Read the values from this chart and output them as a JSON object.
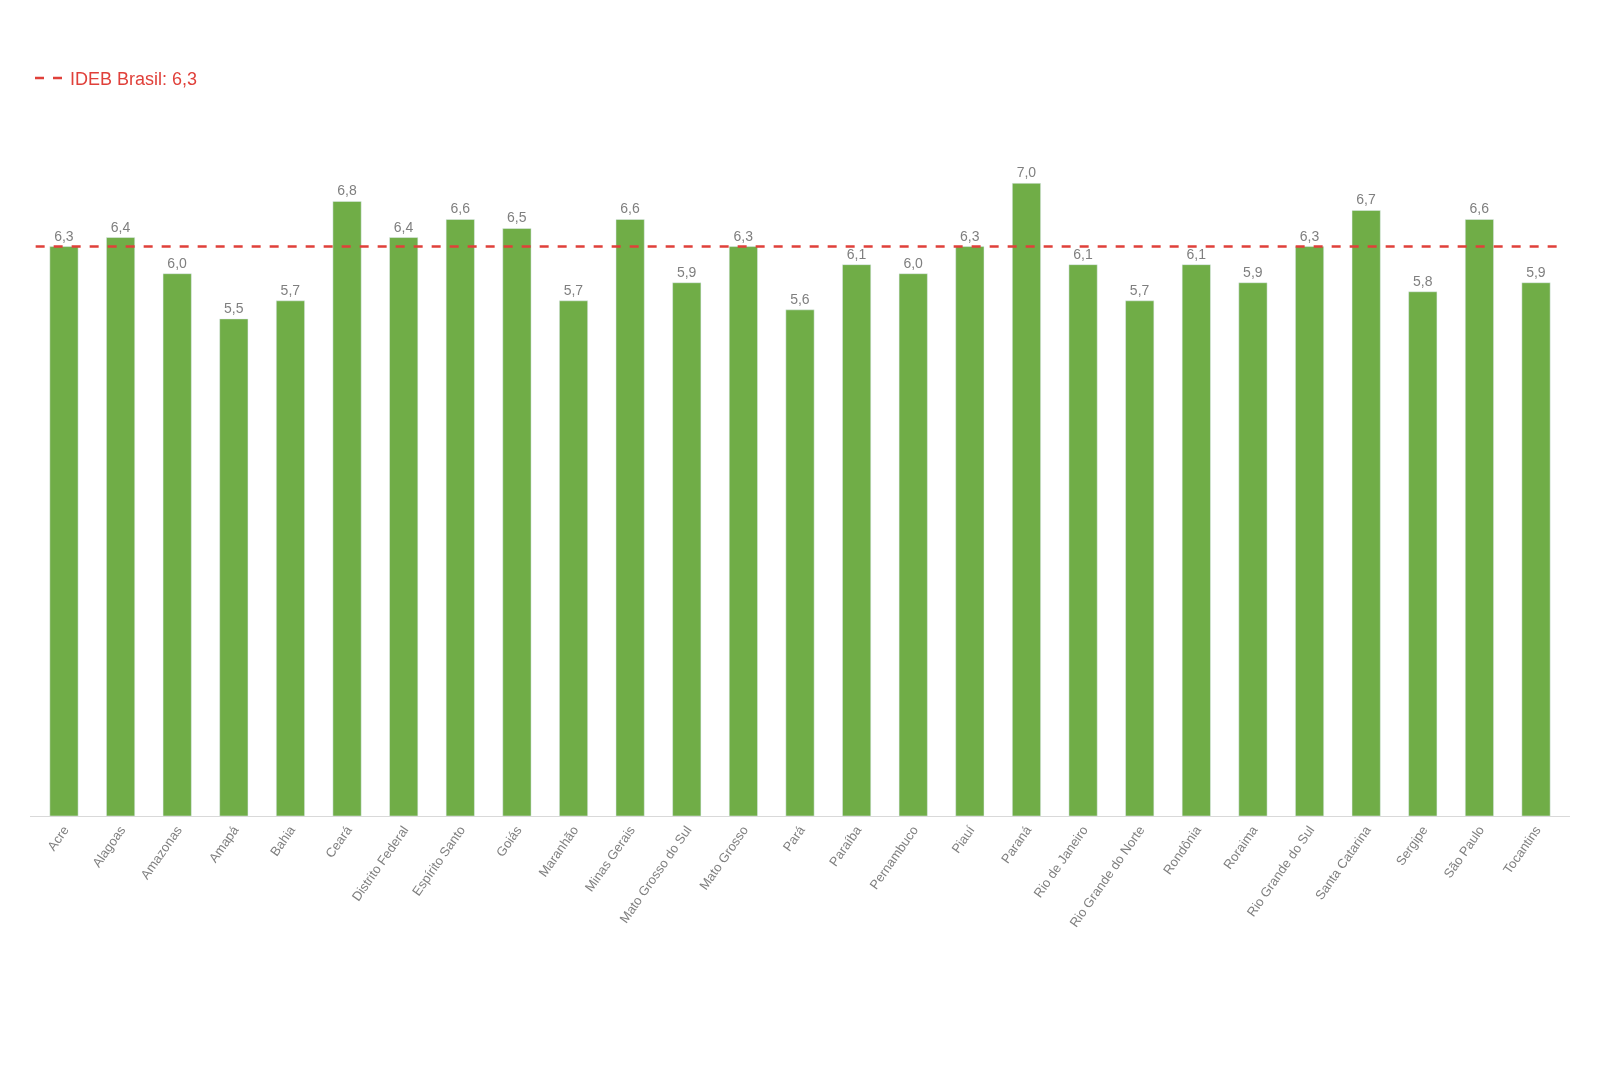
{
  "chart_data": {
    "type": "bar",
    "categories": [
      "Acre",
      "Alagoas",
      "Amazonas",
      "Amapá",
      "Bahia",
      "Ceará",
      "Distrito Federal",
      "Espírito Santo",
      "Goiás",
      "Maranhão",
      "Minas Gerais",
      "Mato Grosso do Sul",
      "Mato Grosso",
      "Pará",
      "Paraíba",
      "Pernambuco",
      "Piauí",
      "Paraná",
      "Rio de Janeiro",
      "Rio Grande do Norte",
      "Rondônia",
      "Roraima",
      "Rio Grande do Sul",
      "Santa Catarina",
      "Sergipe",
      "São Paulo",
      "Tocantins"
    ],
    "values": [
      6.3,
      6.4,
      6.0,
      5.5,
      5.7,
      6.8,
      6.4,
      6.6,
      6.5,
      5.7,
      6.6,
      5.9,
      6.3,
      5.6,
      6.1,
      6.0,
      6.3,
      7.0,
      6.1,
      5.7,
      6.1,
      5.9,
      6.3,
      6.7,
      5.8,
      6.6,
      5.9
    ],
    "value_labels": [
      "6,3",
      "6,4",
      "6,0",
      "5,5",
      "5,7",
      "6,8",
      "6,4",
      "6,6",
      "6,5",
      "5,7",
      "6,6",
      "5,9",
      "6,3",
      "5,6",
      "6,1",
      "6,0",
      "6,3",
      "7,0",
      "6,1",
      "5,7",
      "6,1",
      "5,9",
      "6,3",
      "6,7",
      "5,8",
      "6,6",
      "5,9"
    ],
    "color": "#70ad47",
    "ref_lines": [
      {
        "axis": "y",
        "value": 6.3,
        "label": "IDEB Brasil: 6,3",
        "color": "#e0403a",
        "line_style": "dashed"
      }
    ],
    "legend": "top left"
  }
}
